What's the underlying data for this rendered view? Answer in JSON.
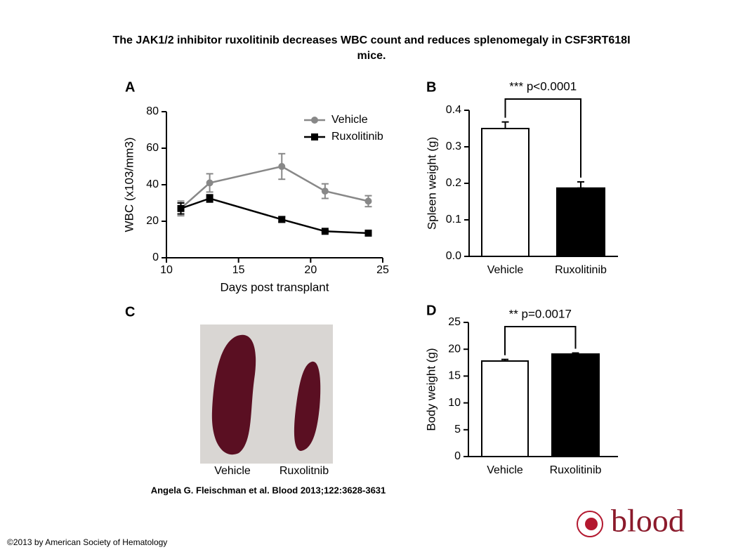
{
  "title": "The JAK1/2 inhibitor ruxolitinib decreases WBC count and reduces splenomegaly in CSF3RT618I mice.",
  "citation": "Angela G. Fleischman et al. Blood 2013;122:3628-3631",
  "copyright": "©2013 by American Society of Hematology",
  "logo": "blood",
  "photo": {
    "panel": "C",
    "labels": [
      "Vehicle",
      "Ruxolitnib"
    ]
  },
  "chart_data": [
    {
      "type": "line",
      "panel": "A",
      "x_label": "Days post transplant",
      "y_label": "WBC (x103/mm3)",
      "x": [
        11,
        13,
        18,
        21,
        24
      ],
      "series": [
        {
          "name": "Vehicle",
          "color": "#888888",
          "marker": "circle",
          "values": [
            27,
            41,
            50,
            36.5,
            31
          ],
          "errors": [
            4,
            5,
            7,
            4,
            3
          ]
        },
        {
          "name": "Ruxolitinib",
          "color": "#000000",
          "marker": "square",
          "values": [
            27,
            32.5,
            21,
            14.5,
            13.5
          ],
          "errors": [
            3,
            2,
            1.5,
            0.5,
            0.5
          ]
        }
      ],
      "xlim": [
        10,
        25
      ],
      "xticks": [
        10,
        15,
        20,
        25
      ],
      "ylim": [
        0,
        80
      ],
      "yticks": [
        0,
        20,
        40,
        60,
        80
      ],
      "legend": "top-right"
    },
    {
      "type": "bar",
      "panel": "B",
      "y_label": "Spleen weight (g)",
      "annotation": "*** p<0.0001",
      "categories": [
        "Vehicle",
        "Ruxolitinib"
      ],
      "values": [
        0.35,
        0.187
      ],
      "errors": [
        0.018,
        0.017
      ],
      "colors": [
        "#ffffff",
        "#000000"
      ],
      "ylim": [
        0,
        0.4
      ],
      "yticks": [
        {
          "value": 0,
          "label": "0.0"
        },
        0.1,
        0.2,
        0.3,
        0.4
      ]
    },
    {
      "type": "bar",
      "panel": "D",
      "y_label": "Body weight (g)",
      "annotation": "** p=0.0017",
      "categories": [
        "Vehicle",
        "Ruxolitinib"
      ],
      "values": [
        17.8,
        19.1
      ],
      "errors": [
        0.3,
        0.2
      ],
      "colors": [
        "#ffffff",
        "#000000"
      ],
      "ylim": [
        0,
        25
      ],
      "yticks": [
        0,
        5,
        10,
        15,
        20,
        25
      ]
    }
  ]
}
